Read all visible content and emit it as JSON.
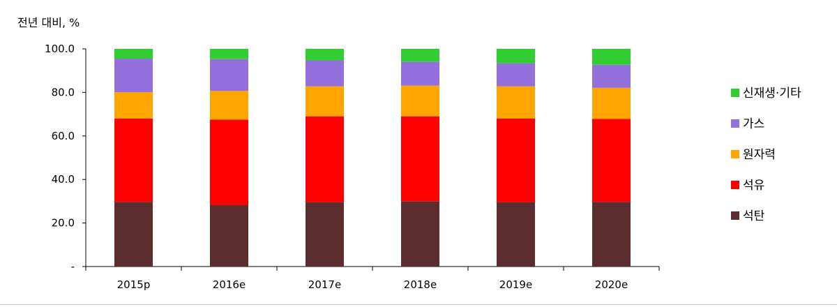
{
  "chart_data": {
    "type": "bar",
    "stacked": true,
    "unit_label": "전년 대비, %",
    "categories": [
      "2015p",
      "2016e",
      "2017e",
      "2018e",
      "2019e",
      "2020e"
    ],
    "series": [
      {
        "name": "석탄",
        "color": "#5c2d2f",
        "values": [
          29.7,
          28.2,
          29.6,
          29.9,
          29.6,
          29.7
        ]
      },
      {
        "name": "석유",
        "color": "#ff0000",
        "values": [
          38.3,
          39.3,
          39.4,
          39.1,
          38.4,
          38.1
        ]
      },
      {
        "name": "원자력",
        "color": "#ffa500",
        "values": [
          12.1,
          13.2,
          13.8,
          14.1,
          14.8,
          14.3
        ]
      },
      {
        "name": "가스",
        "color": "#9370db",
        "values": [
          15.4,
          14.6,
          11.9,
          10.9,
          10.6,
          10.6
        ]
      },
      {
        "name": "신재생·기타",
        "color": "#32cd32",
        "values": [
          4.5,
          4.7,
          5.3,
          6.0,
          6.6,
          7.3
        ]
      }
    ],
    "legend_order": [
      "신재생·기타",
      "가스",
      "원자력",
      "석유",
      "석탄"
    ],
    "y_ticks": [
      "-",
      "20.0",
      "40.0",
      "60.0",
      "80.0",
      "100.0"
    ],
    "ylim": [
      0,
      100
    ],
    "grid": false,
    "legend_position": "right"
  }
}
